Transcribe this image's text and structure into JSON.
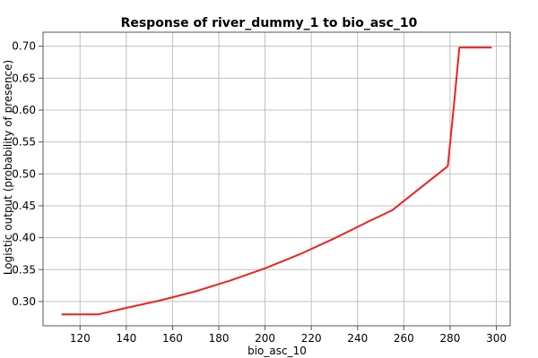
{
  "chart_data": {
    "type": "line",
    "title": "Response of river_dummy_1 to bio_asc_10",
    "xlabel": "bio_asc_10",
    "ylabel": "Logistic output (probability of presence)",
    "xlim": [
      104,
      306
    ],
    "ylim": [
      0.262,
      0.722
    ],
    "xticks": [
      120,
      140,
      160,
      180,
      200,
      220,
      240,
      260,
      280,
      300
    ],
    "yticks": [
      0.3,
      0.35,
      0.4,
      0.45,
      0.5,
      0.55,
      0.6,
      0.65,
      0.7
    ],
    "grid": true,
    "legend": "none",
    "series": [
      {
        "color": "#ee2222",
        "x": [
          112,
          128,
          140,
          155,
          170,
          185,
          200,
          215,
          230,
          245,
          255,
          265,
          279,
          282,
          284,
          298
        ],
        "y": [
          0.28,
          0.28,
          0.29,
          0.302,
          0.316,
          0.333,
          0.352,
          0.374,
          0.399,
          0.426,
          0.443,
          0.472,
          0.512,
          0.62,
          0.698,
          0.698
        ]
      }
    ]
  }
}
